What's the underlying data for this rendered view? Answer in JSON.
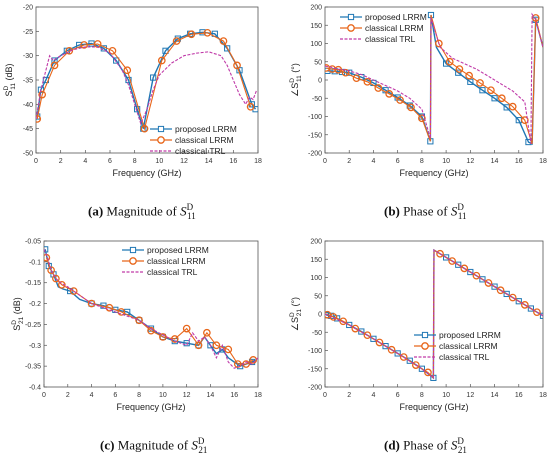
{
  "captions": {
    "a": {
      "tag": "(a)",
      "text": "Magnitude of",
      "sym": "S",
      "sup": "D",
      "sub": "11"
    },
    "b": {
      "tag": "(b)",
      "text": "Phase of",
      "sym": "S",
      "sup": "D",
      "sub": "11"
    },
    "c": {
      "tag": "(c)",
      "text": "Magnitude of",
      "sym": "S",
      "sup": "D",
      "sub": "21"
    },
    "d": {
      "tag": "(d)",
      "text": "Phase of",
      "sym": "S",
      "sup": "D",
      "sub": "21"
    }
  },
  "colors": {
    "proposed": "#1f77b4",
    "classical": "#e8661a",
    "trl": "#c03aa8",
    "axis": "#555555"
  },
  "chart_data": [
    {
      "type": "line",
      "xlabel": "Frequency (GHz)",
      "ylabel": "S11 D (dB)",
      "ylabel_parts": {
        "pre": "S",
        "sup": "D",
        "sub": "11",
        "post": " (dB)"
      },
      "xlim": [
        0,
        18
      ],
      "ylim": [
        -50,
        -20
      ],
      "xticks": [
        0,
        2,
        4,
        6,
        8,
        10,
        12,
        14,
        16,
        18
      ],
      "yticks": [
        -50,
        -45,
        -40,
        -35,
        -30,
        -25,
        -20
      ],
      "legend": "bottom-right",
      "series": [
        {
          "name": "proposed LRRM",
          "marker": "square",
          "x": [
            0.1,
            0.4,
            0.8,
            1.5,
            2.5,
            3.5,
            4.5,
            5.5,
            6.5,
            7.5,
            8.2,
            8.7,
            9.5,
            10.5,
            11.5,
            12.5,
            13.5,
            14.5,
            15.5,
            16.5,
            17.5,
            17.8
          ],
          "y": [
            -42.5,
            -37,
            -35,
            -31,
            -29,
            -27.8,
            -27.5,
            -28.5,
            -31,
            -35,
            -41,
            -45,
            -34.5,
            -29,
            -26.5,
            -25.5,
            -25.2,
            -25.5,
            -28.5,
            -33,
            -40,
            -41
          ]
        },
        {
          "name": "classical LRRM",
          "marker": "circle",
          "x": [
            0.1,
            0.5,
            1.5,
            2.7,
            3.9,
            5.0,
            6.2,
            7.4,
            8.8,
            10.2,
            11.4,
            12.6,
            13.9,
            15.2,
            16.3,
            17.4
          ],
          "y": [
            -43,
            -38,
            -32,
            -29,
            -27.8,
            -27.6,
            -29,
            -33,
            -45,
            -31,
            -27,
            -25.6,
            -25.3,
            -27,
            -32,
            -40.5
          ]
        },
        {
          "name": "classical TRL",
          "marker": "none",
          "dash": true,
          "x": [
            0,
            0.4,
            0.8,
            1.1,
            1.4,
            2,
            3,
            4,
            5,
            6,
            7,
            7.5,
            8,
            8.5,
            9,
            9.5,
            10,
            11,
            12,
            13,
            14,
            15,
            15.5,
            16,
            16.5,
            17,
            17.3,
            17.6,
            17.9
          ],
          "y": [
            -43,
            -37,
            -33,
            -30,
            -31,
            -30,
            -28.8,
            -28.2,
            -28.2,
            -29.5,
            -33,
            -36,
            -40,
            -44,
            -41,
            -37,
            -34,
            -31.5,
            -30,
            -29.5,
            -29.2,
            -30,
            -32,
            -35,
            -38,
            -40,
            -38.5,
            -39,
            -37
          ]
        }
      ]
    },
    {
      "type": "line",
      "xlabel": "Frequency (GHz)",
      "ylabel": "∠S11 D (°)",
      "ylabel_parts": {
        "pre": "∠S",
        "sup": "D",
        "sub": "11",
        "post": " (°)"
      },
      "xlim": [
        0,
        18
      ],
      "ylim": [
        -200,
        200
      ],
      "xticks": [
        0,
        2,
        4,
        6,
        8,
        10,
        12,
        14,
        16,
        18
      ],
      "yticks": [
        -200,
        -150,
        -100,
        -50,
        0,
        50,
        100,
        150,
        200
      ],
      "legend": "top-left",
      "series": [
        {
          "name": "proposed LRRM",
          "marker": "square",
          "x": [
            0.2,
            0.8,
            1.4,
            2,
            3,
            4,
            5,
            6,
            7,
            8,
            8.7,
            8.75,
            9.2,
            10,
            11,
            12,
            13,
            14,
            15,
            16,
            16.8,
            17.1,
            17.4,
            18
          ],
          "y": [
            25,
            24,
            22,
            20,
            8,
            -8,
            -28,
            -48,
            -70,
            -100,
            -168,
            178,
            90,
            45,
            20,
            -5,
            -28,
            -50,
            -75,
            -110,
            -170,
            -175,
            165,
            90
          ],
          "marked": [
            true,
            true,
            true,
            true,
            true,
            true,
            true,
            true,
            true,
            true,
            true,
            true,
            false,
            true,
            true,
            true,
            true,
            true,
            true,
            true,
            true,
            false,
            true,
            false
          ]
        },
        {
          "name": "classical LRRM",
          "marker": "circle",
          "x": [
            0.1,
            0.6,
            1.1,
            1.7,
            2.6,
            3.5,
            4.4,
            5.3,
            6.2,
            7.1,
            8.0,
            8.7,
            8.75,
            9.4,
            10.3,
            11.1,
            11.9,
            12.8,
            13.7,
            14.6,
            15.5,
            16.5,
            17.1,
            17.4,
            18
          ],
          "y": [
            33,
            30,
            28,
            20,
            5,
            -5,
            -22,
            -38,
            -55,
            -75,
            -105,
            -168,
            178,
            100,
            50,
            30,
            12,
            -8,
            -28,
            -50,
            -73,
            -110,
            -175,
            170,
            90
          ],
          "marked": [
            true,
            true,
            true,
            true,
            true,
            true,
            true,
            true,
            true,
            true,
            true,
            false,
            false,
            true,
            true,
            true,
            true,
            true,
            true,
            true,
            true,
            true,
            false,
            true,
            false
          ]
        },
        {
          "name": "classical TRL",
          "marker": "none",
          "dash": true,
          "x": [
            0,
            0.5,
            1,
            1.5,
            2,
            3,
            4,
            5,
            6,
            7,
            8,
            8.7,
            8.75,
            9.5,
            10.5,
            11.5,
            12.5,
            13.5,
            14.5,
            15.5,
            16.5,
            17,
            17.1,
            17.4,
            18
          ],
          "y": [
            38,
            35,
            30,
            28,
            25,
            15,
            0,
            -15,
            -30,
            -50,
            -80,
            -160,
            170,
            90,
            60,
            45,
            30,
            10,
            -10,
            -30,
            -60,
            -175,
            180,
            165,
            90
          ]
        }
      ]
    },
    {
      "type": "line",
      "xlabel": "Frequency (GHz)",
      "ylabel": "S21 D (dB)",
      "ylabel_parts": {
        "pre": "S",
        "sup": "D",
        "sub": "21",
        "post": " (dB)"
      },
      "xlim": [
        0,
        18
      ],
      "ylim": [
        -0.4,
        -0.05
      ],
      "xticks": [
        0,
        2,
        4,
        6,
        8,
        10,
        12,
        14,
        16,
        18
      ],
      "yticks": [
        -0.4,
        -0.35,
        -0.3,
        -0.25,
        -0.2,
        -0.15,
        -0.1,
        -0.05
      ],
      "legend": "top-right",
      "series": [
        {
          "name": "proposed LRRM",
          "marker": "square",
          "x": [
            0.1,
            0.4,
            0.8,
            1.2,
            1.6,
            2.2,
            3,
            4,
            5,
            6,
            7,
            8,
            9,
            10,
            11,
            12,
            13,
            13.5,
            14,
            14.5,
            15,
            15.5,
            16,
            16.5,
            17,
            17.5,
            17.8
          ],
          "y": [
            -0.07,
            -0.11,
            -0.13,
            -0.16,
            -0.165,
            -0.17,
            -0.19,
            -0.2,
            -0.205,
            -0.215,
            -0.22,
            -0.24,
            -0.26,
            -0.28,
            -0.29,
            -0.295,
            -0.3,
            -0.28,
            -0.3,
            -0.32,
            -0.31,
            -0.33,
            -0.34,
            -0.35,
            -0.345,
            -0.34,
            -0.335
          ],
          "marked": [
            true,
            true,
            true,
            false,
            false,
            true,
            false,
            true,
            true,
            true,
            true,
            true,
            true,
            true,
            true,
            true,
            true,
            false,
            true,
            false,
            true,
            false,
            false,
            true,
            false,
            true,
            false
          ]
        },
        {
          "name": "classical LRRM",
          "marker": "circle",
          "x": [
            0.2,
            0.6,
            1,
            1.5,
            2.5,
            4,
            5.5,
            6.5,
            8,
            9,
            10,
            11,
            12,
            13,
            13.7,
            14.5,
            15.5,
            16.3,
            17,
            17.6
          ],
          "y": [
            -0.09,
            -0.12,
            -0.14,
            -0.155,
            -0.17,
            -0.2,
            -0.21,
            -0.22,
            -0.24,
            -0.265,
            -0.28,
            -0.285,
            -0.26,
            -0.3,
            -0.27,
            -0.3,
            -0.31,
            -0.345,
            -0.345,
            -0.335
          ]
        },
        {
          "name": "classical TRL",
          "marker": "none",
          "dash": true,
          "x": [
            0,
            0.3,
            0.6,
            1,
            1.4,
            2,
            3,
            4,
            5,
            6,
            7,
            8,
            9,
            10,
            11,
            12,
            12.5,
            13,
            13.5,
            14,
            14.5,
            15,
            15.5,
            16,
            16.5,
            17,
            17.5,
            18
          ],
          "y": [
            -0.07,
            -0.09,
            -0.12,
            -0.14,
            -0.15,
            -0.16,
            -0.18,
            -0.2,
            -0.21,
            -0.22,
            -0.23,
            -0.24,
            -0.26,
            -0.275,
            -0.29,
            -0.3,
            -0.27,
            -0.29,
            -0.28,
            -0.3,
            -0.33,
            -0.3,
            -0.34,
            -0.355,
            -0.35,
            -0.34,
            -0.345,
            -0.33
          ]
        }
      ]
    },
    {
      "type": "line",
      "xlabel": "Frequency (GHz)",
      "ylabel": "∠S21 D (°)",
      "ylabel_parts": {
        "pre": "∠S",
        "sup": "D",
        "sub": "21",
        "post": " (°)"
      },
      "xlim": [
        0,
        18
      ],
      "ylim": [
        -200,
        200
      ],
      "xticks": [
        0,
        2,
        4,
        6,
        8,
        10,
        12,
        14,
        16,
        18
      ],
      "yticks": [
        -200,
        -150,
        -100,
        -50,
        0,
        50,
        100,
        150,
        200
      ],
      "legend": "bottom-right",
      "series": [
        {
          "name": "proposed LRRM",
          "marker": "square",
          "x": [
            0.1,
            0.5,
            1,
            2,
            3,
            4,
            5,
            6,
            7,
            8,
            8.95,
            9.0,
            10,
            11,
            12,
            13,
            14,
            15,
            16,
            17,
            18
          ],
          "y": [
            -3,
            -5,
            -12,
            -30,
            -48,
            -68,
            -88,
            -108,
            -128,
            -150,
            -175,
            175,
            155,
            135,
            115,
            95,
            75,
            55,
            35,
            15,
            -5
          ],
          "marked": [
            true,
            true,
            true,
            true,
            true,
            true,
            true,
            true,
            true,
            true,
            true,
            false,
            true,
            true,
            true,
            true,
            true,
            true,
            true,
            true,
            true
          ]
        },
        {
          "name": "classical LRRM",
          "marker": "circle",
          "x": [
            0.2,
            0.7,
            1.5,
            2.5,
            3.5,
            4.5,
            5.5,
            6.5,
            7.5,
            8.5,
            8.95,
            9.0,
            9.5,
            10.5,
            11.5,
            12.5,
            13.5,
            14.5,
            15.5,
            16.5,
            17.5
          ],
          "y": [
            -2,
            -8,
            -20,
            -40,
            -58,
            -78,
            -98,
            -118,
            -140,
            -160,
            -175,
            175,
            165,
            145,
            125,
            105,
            85,
            65,
            45,
            25,
            5
          ],
          "marked": [
            true,
            true,
            true,
            true,
            true,
            true,
            true,
            true,
            true,
            true,
            false,
            false,
            true,
            true,
            true,
            true,
            true,
            true,
            true,
            true,
            true
          ]
        },
        {
          "name": "classical TRL",
          "marker": "none",
          "dash": true,
          "x": [
            0,
            2,
            4,
            6,
            8,
            8.95,
            9.0,
            10,
            12,
            14,
            16,
            18
          ],
          "y": [
            0,
            -30,
            -68,
            -108,
            -150,
            -175,
            175,
            155,
            115,
            75,
            35,
            -5
          ]
        }
      ]
    }
  ]
}
